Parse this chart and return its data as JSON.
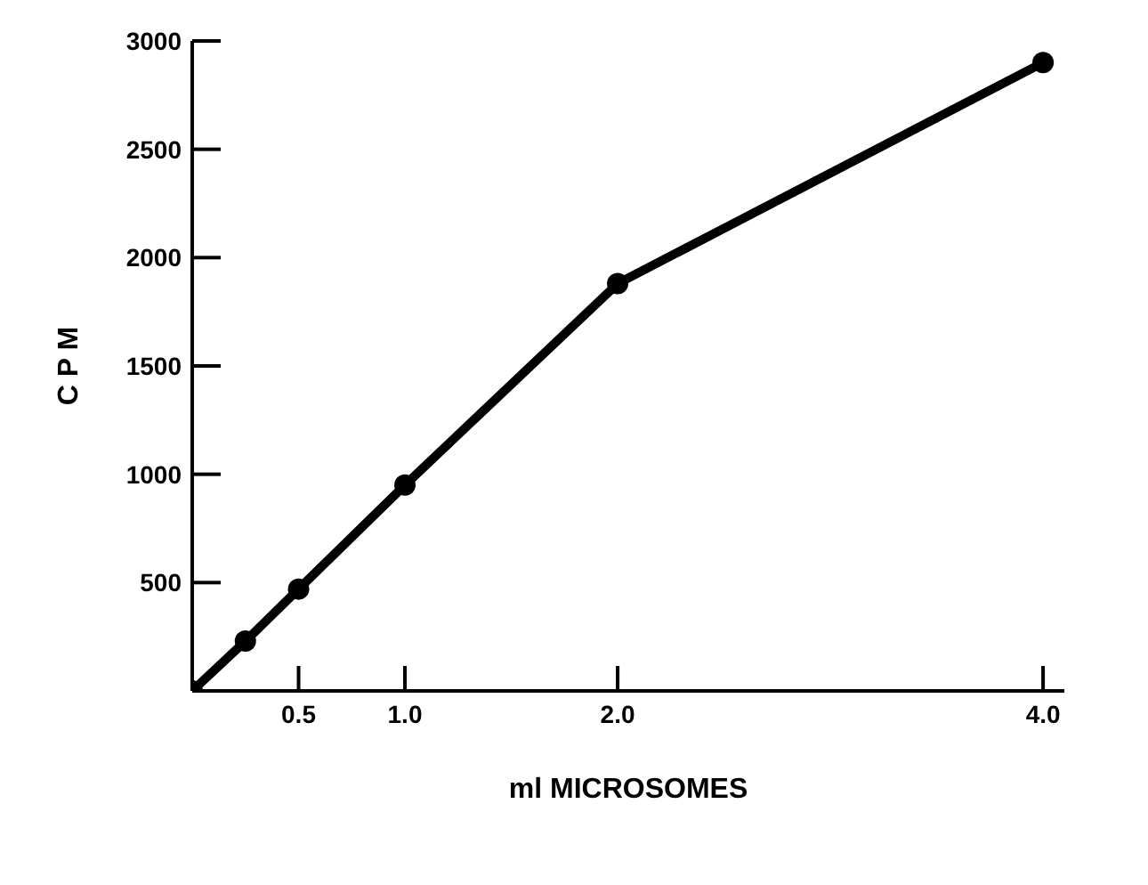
{
  "chart_data": {
    "type": "line",
    "xlabel": "ml MICROSOMES",
    "ylabel": "C P M",
    "x": [
      0,
      0.25,
      0.5,
      1.0,
      2.0,
      4.0
    ],
    "series": [
      {
        "color": "#000000",
        "values": [
          0,
          230,
          470,
          950,
          1880,
          2900
        ]
      }
    ],
    "xlim": [
      0,
      4.1
    ],
    "xticks": [
      {
        "value": 0.5,
        "label": "0.5"
      },
      {
        "value": 1,
        "label": "1.0"
      },
      {
        "value": 2,
        "label": "2.0"
      },
      {
        "value": 4,
        "label": "4.0"
      }
    ],
    "ylim": [
      0,
      3000
    ],
    "yticks": [
      500,
      1000,
      1500,
      2000,
      2500,
      3000
    ],
    "grid": false,
    "legend": false,
    "marker": "circle",
    "line_style": "solid"
  }
}
